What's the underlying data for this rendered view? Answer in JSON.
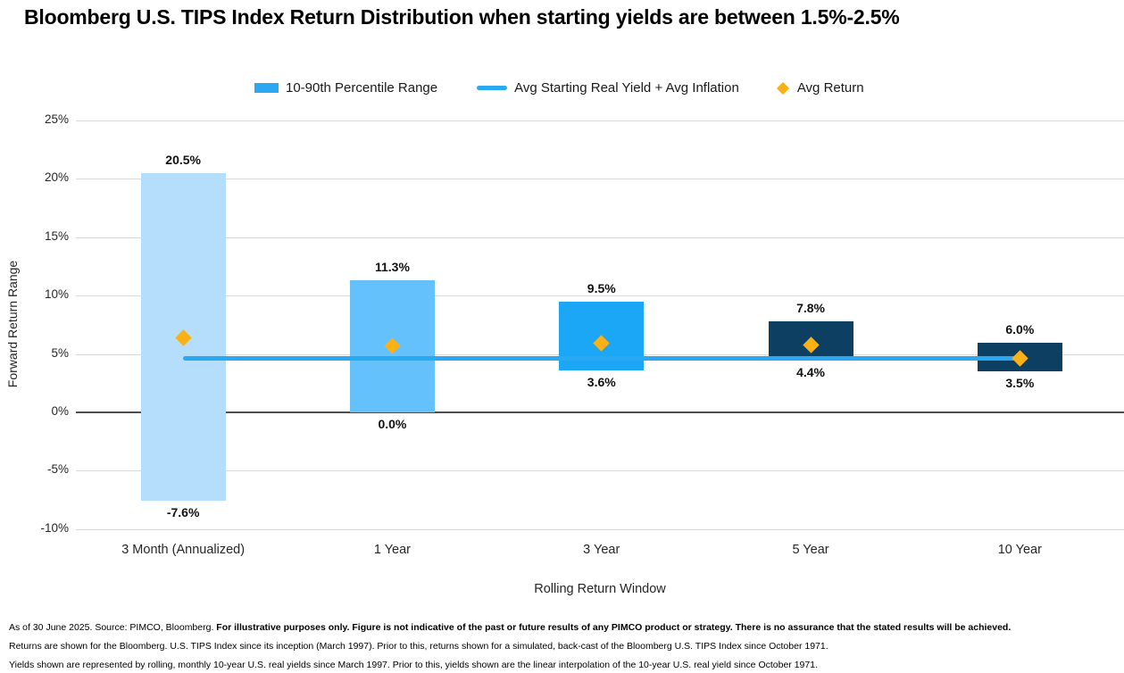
{
  "title": "Bloomberg U.S. TIPS Index Return Distribution when starting yields are between 1.5%-2.5%",
  "legend": {
    "items": [
      {
        "label": "10-90th Percentile Range",
        "swatch": "bar",
        "color": "#2aa9f2"
      },
      {
        "label": "Avg Starting Real Yield + Avg Inflation",
        "swatch": "line",
        "color": "#2aa9f2"
      },
      {
        "label": "Avg Return",
        "swatch": "diamond",
        "color": "#fbb116"
      }
    ]
  },
  "chart_data": {
    "type": "bar",
    "subtype": "floating-range-bars-with-line-and-markers",
    "title": "Bloomberg U.S. TIPS Index Return Distribution when starting yields are between 1.5%-2.5%",
    "xlabel": "Rolling Return Window",
    "ylabel": "Forward Return Range",
    "ylim": [
      -10,
      25
    ],
    "grid": true,
    "legend_position": "top",
    "yticks": [
      25,
      20,
      15,
      10,
      5,
      0,
      -5,
      -10
    ],
    "ytick_labels": [
      "25%",
      "20%",
      "15%",
      "10%",
      "5%",
      "0%",
      "-5%",
      "-10%"
    ],
    "categories": [
      "3 Month (Annualized)",
      "1 Year",
      "3 Year",
      "5 Year",
      "10 Year"
    ],
    "series": [
      {
        "name": "10-90th Percentile Range",
        "kind": "range-bar",
        "low": [
          -7.6,
          0.0,
          3.6,
          4.4,
          3.5
        ],
        "high": [
          20.5,
          11.3,
          9.5,
          7.8,
          6.0
        ],
        "low_labels": [
          "-7.6%",
          "0.0%",
          "3.6%",
          "4.4%",
          "3.5%"
        ],
        "high_labels": [
          "20.5%",
          "11.3%",
          "9.5%",
          "7.8%",
          "6.0%"
        ],
        "bar_colors": [
          "#b4defb",
          "#64c1fb",
          "#1ba6f6",
          "#0d3f63",
          "#0d3f63"
        ]
      },
      {
        "name": "Avg Starting Real Yield + Avg Inflation",
        "kind": "horizontal-line",
        "value": 4.6,
        "color": "#2aa9f2"
      },
      {
        "name": "Avg Return",
        "kind": "scatter-diamond",
        "values": [
          6.4,
          5.7,
          5.9,
          5.8,
          4.6
        ],
        "color": "#fbb116"
      }
    ]
  },
  "footnotes": {
    "line1_normal": "As of 30 June 2025. Source: PIMCO, Bloomberg. ",
    "line1_bold": "For illustrative purposes only. Figure is not indicative of the past or future results of any PIMCO product or strategy. There is no assurance that the stated results will be achieved.",
    "line2": "Returns are shown for the Bloomberg. U.S. TIPS Index since its inception (March 1997). Prior to this, returns shown for a simulated, back-cast of the Bloomberg U.S. TIPS Index since October 1971.",
    "line3": "Yields shown are represented by rolling, monthly 10-year U.S. real yields since March 1997. Prior to this, yields shown are the linear interpolation of the 10-year U.S. real yield since October 1971."
  }
}
